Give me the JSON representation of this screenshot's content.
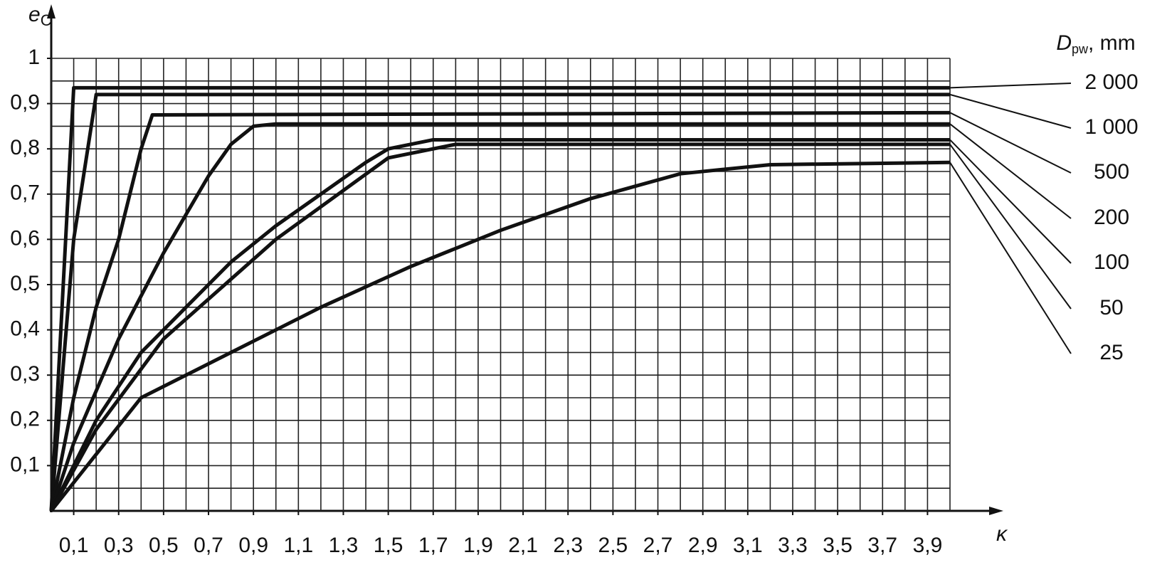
{
  "chart_data": {
    "type": "line",
    "ylabel": {
      "main": "e",
      "sub": "C"
    },
    "xlabel": "κ",
    "legend_title": {
      "main": "D",
      "sub": "pw",
      "unit": ", mm"
    },
    "xlim": [
      0,
      4
    ],
    "ylim": [
      0,
      1
    ],
    "xticks": [
      {
        "value": 0.1,
        "label": "0,1"
      },
      {
        "value": 0.3,
        "label": "0,3"
      },
      {
        "value": 0.5,
        "label": "0,5"
      },
      {
        "value": 0.7,
        "label": "0,7"
      },
      {
        "value": 0.9,
        "label": "0,9"
      },
      {
        "value": 1.1,
        "label": "1,1"
      },
      {
        "value": 1.3,
        "label": "1,3"
      },
      {
        "value": 1.5,
        "label": "1,5"
      },
      {
        "value": 1.7,
        "label": "1,7"
      },
      {
        "value": 1.9,
        "label": "1,9"
      },
      {
        "value": 2.1,
        "label": "2,1"
      },
      {
        "value": 2.3,
        "label": "2,3"
      },
      {
        "value": 2.5,
        "label": "2,5"
      },
      {
        "value": 2.7,
        "label": "2,7"
      },
      {
        "value": 2.9,
        "label": "2,9"
      },
      {
        "value": 3.1,
        "label": "3,1"
      },
      {
        "value": 3.3,
        "label": "3,3"
      },
      {
        "value": 3.5,
        "label": "3,5"
      },
      {
        "value": 3.7,
        "label": "3,7"
      },
      {
        "value": 3.9,
        "label": "3,9"
      }
    ],
    "yticks": [
      {
        "value": 0.1,
        "label": "0,1"
      },
      {
        "value": 0.2,
        "label": "0,2"
      },
      {
        "value": 0.3,
        "label": "0,3"
      },
      {
        "value": 0.4,
        "label": "0,4"
      },
      {
        "value": 0.5,
        "label": "0,5"
      },
      {
        "value": 0.6,
        "label": "0,6"
      },
      {
        "value": 0.7,
        "label": "0,7"
      },
      {
        "value": 0.8,
        "label": "0,8"
      },
      {
        "value": 0.9,
        "label": "0,9"
      },
      1
    ],
    "xgrid": [
      0,
      0.1,
      0.2,
      0.3,
      0.4,
      0.5,
      0.6,
      0.7,
      0.8,
      0.9,
      1.0,
      1.1,
      1.2,
      1.3,
      1.4,
      1.5,
      1.6,
      1.7,
      1.8,
      1.9,
      2.0,
      2.1,
      2.2,
      2.3,
      2.4,
      2.5,
      2.6,
      2.7,
      2.8,
      2.9,
      3.0,
      3.1,
      3.2,
      3.3,
      3.4,
      3.5,
      3.6,
      3.7,
      3.8,
      3.9,
      4.0
    ],
    "ygrid": [
      0.05,
      0.1,
      0.15,
      0.2,
      0.25,
      0.3,
      0.35,
      0.4,
      0.45,
      0.5,
      0.55,
      0.6,
      0.65,
      0.7,
      0.75,
      0.8,
      0.85,
      0.9,
      0.95,
      1.0
    ],
    "grid": true,
    "series": [
      {
        "name": "2 000",
        "color": "#111111",
        "x": [
          0,
          0.1,
          4
        ],
        "values": [
          0,
          0.935,
          0.935
        ]
      },
      {
        "name": "1 000",
        "color": "#111111",
        "x": [
          0,
          0.05,
          0.1,
          0.2,
          4
        ],
        "values": [
          0,
          0.3,
          0.6,
          0.92,
          0.92
        ]
      },
      {
        "name": "500",
        "color": "#111111",
        "x": [
          0,
          0.1,
          0.2,
          0.3,
          0.4,
          0.45,
          4
        ],
        "values": [
          0,
          0.25,
          0.45,
          0.6,
          0.8,
          0.875,
          0.88
        ]
      },
      {
        "name": "200",
        "color": "#111111",
        "x": [
          0,
          0.1,
          0.3,
          0.5,
          0.7,
          0.8,
          0.9,
          1.0,
          4
        ],
        "values": [
          0,
          0.15,
          0.38,
          0.57,
          0.74,
          0.81,
          0.85,
          0.855,
          0.855
        ]
      },
      {
        "name": "100",
        "color": "#111111",
        "x": [
          0,
          0.2,
          0.4,
          0.6,
          0.8,
          1.0,
          1.2,
          1.4,
          1.5,
          1.7,
          4
        ],
        "values": [
          0,
          0.2,
          0.35,
          0.45,
          0.55,
          0.63,
          0.7,
          0.77,
          0.8,
          0.82,
          0.82
        ]
      },
      {
        "name": "50",
        "color": "#111111",
        "x": [
          0,
          0.2,
          0.5,
          1.0,
          1.5,
          1.8,
          4
        ],
        "values": [
          0,
          0.18,
          0.38,
          0.6,
          0.78,
          0.81,
          0.81
        ]
      },
      {
        "name": "25",
        "color": "#111111",
        "x": [
          0,
          0.4,
          0.8,
          1.2,
          1.6,
          2.0,
          2.4,
          2.8,
          3.2,
          4
        ],
        "values": [
          0,
          0.25,
          0.35,
          0.45,
          0.54,
          0.62,
          0.69,
          0.745,
          0.765,
          0.77
        ]
      }
    ]
  }
}
